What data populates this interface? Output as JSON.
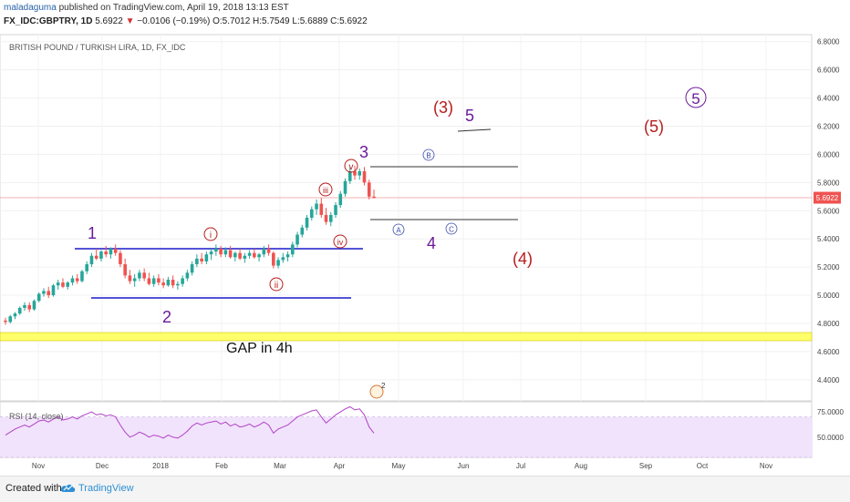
{
  "header": {
    "author": "maladaguma",
    "published": " published on TradingView.com, April 19, 2018 13:13 EST",
    "symbol": "FX_IDC:GBPTRY, 1D",
    "last": "5.6922",
    "change": "−0.0106 (−0.19%)",
    "ohlc": "O:5.7012 H:5.7549 L:5.6889 C:5.6922"
  },
  "footer": {
    "created_with": "Created with",
    "brand": "TradingView",
    "logo_icon": "tradingview-logo-icon"
  },
  "colors": {
    "up": "#26a69a",
    "down": "#ef5350",
    "support_line": "#1a1acb",
    "wave_purple": "#6a1b9a",
    "wave_red": "#b71c1c",
    "gap_band": "#ffff6b",
    "rsi_fill": "#f1e3fb",
    "rsi_line": "#b042c7",
    "price_line": "#ef9a9a"
  },
  "chart_data": [
    {
      "type": "candlestick",
      "title": "BRITISH POUND / TURKISH LIRA, 1D, FX_IDC",
      "x_ticks": [
        "Nov",
        "Dec",
        "2018",
        "Feb",
        "Mar",
        "Apr",
        "May",
        "Jun",
        "Jul",
        "Aug",
        "Sep",
        "Oct",
        "Nov"
      ],
      "y_ticks": [
        "6.8000",
        "6.6000",
        "6.4000",
        "6.2000",
        "6.0000",
        "5.8000",
        "5.6000",
        "5.4000",
        "5.2000",
        "5.0000",
        "4.8000",
        "4.6000",
        "4.4000"
      ],
      "ylim": [
        4.25,
        6.85
      ],
      "last_price": "5.6922",
      "candles": [
        [
          4.82,
          4.84,
          4.79,
          4.81
        ],
        [
          4.81,
          4.86,
          4.8,
          4.85
        ],
        [
          4.85,
          4.88,
          4.83,
          4.87
        ],
        [
          4.87,
          4.92,
          4.86,
          4.91
        ],
        [
          4.91,
          4.95,
          4.89,
          4.93
        ],
        [
          4.93,
          4.95,
          4.88,
          4.9
        ],
        [
          4.9,
          4.97,
          4.89,
          4.96
        ],
        [
          4.96,
          5.02,
          4.95,
          5.01
        ],
        [
          5.01,
          5.05,
          4.99,
          5.03
        ],
        [
          5.03,
          5.06,
          4.98,
          5.0
        ],
        [
          5.0,
          5.08,
          4.99,
          5.07
        ],
        [
          5.07,
          5.11,
          5.04,
          5.09
        ],
        [
          5.09,
          5.12,
          5.05,
          5.06
        ],
        [
          5.06,
          5.1,
          5.04,
          5.09
        ],
        [
          5.09,
          5.14,
          5.07,
          5.12
        ],
        [
          5.12,
          5.15,
          5.08,
          5.1
        ],
        [
          5.1,
          5.18,
          5.09,
          5.17
        ],
        [
          5.17,
          5.24,
          5.15,
          5.22
        ],
        [
          5.22,
          5.3,
          5.2,
          5.28
        ],
        [
          5.28,
          5.33,
          5.25,
          5.26
        ],
        [
          5.26,
          5.32,
          5.24,
          5.31
        ],
        [
          5.31,
          5.35,
          5.27,
          5.29
        ],
        [
          5.29,
          5.34,
          5.26,
          5.33
        ],
        [
          5.33,
          5.36,
          5.28,
          5.3
        ],
        [
          5.3,
          5.32,
          5.2,
          5.22
        ],
        [
          5.22,
          5.26,
          5.12,
          5.14
        ],
        [
          5.14,
          5.18,
          5.08,
          5.1
        ],
        [
          5.1,
          5.15,
          5.06,
          5.12
        ],
        [
          5.12,
          5.18,
          5.1,
          5.16
        ],
        [
          5.16,
          5.19,
          5.1,
          5.12
        ],
        [
          5.12,
          5.16,
          5.07,
          5.08
        ],
        [
          5.08,
          5.14,
          5.06,
          5.12
        ],
        [
          5.12,
          5.15,
          5.07,
          5.09
        ],
        [
          5.09,
          5.12,
          5.05,
          5.07
        ],
        [
          5.07,
          5.13,
          5.06,
          5.11
        ],
        [
          5.11,
          5.14,
          5.05,
          5.07
        ],
        [
          5.07,
          5.1,
          5.04,
          5.08
        ],
        [
          5.08,
          5.14,
          5.06,
          5.12
        ],
        [
          5.12,
          5.18,
          5.1,
          5.16
        ],
        [
          5.16,
          5.24,
          5.14,
          5.22
        ],
        [
          5.22,
          5.29,
          5.2,
          5.26
        ],
        [
          5.26,
          5.3,
          5.22,
          5.24
        ],
        [
          5.24,
          5.31,
          5.22,
          5.29
        ],
        [
          5.29,
          5.33,
          5.25,
          5.31
        ],
        [
          5.31,
          5.36,
          5.28,
          5.33
        ],
        [
          5.33,
          5.35,
          5.27,
          5.29
        ],
        [
          5.29,
          5.34,
          5.27,
          5.32
        ],
        [
          5.32,
          5.35,
          5.26,
          5.27
        ],
        [
          5.27,
          5.31,
          5.24,
          5.3
        ],
        [
          5.3,
          5.33,
          5.25,
          5.26
        ],
        [
          5.26,
          5.3,
          5.23,
          5.28
        ],
        [
          5.28,
          5.32,
          5.26,
          5.3
        ],
        [
          5.3,
          5.33,
          5.26,
          5.27
        ],
        [
          5.27,
          5.3,
          5.24,
          5.29
        ],
        [
          5.29,
          5.35,
          5.27,
          5.33
        ],
        [
          5.33,
          5.36,
          5.28,
          5.3
        ],
        [
          5.3,
          5.31,
          5.19,
          5.21
        ],
        [
          5.21,
          5.27,
          5.19,
          5.25
        ],
        [
          5.25,
          5.3,
          5.23,
          5.27
        ],
        [
          5.27,
          5.31,
          5.24,
          5.29
        ],
        [
          5.29,
          5.38,
          5.27,
          5.36
        ],
        [
          5.36,
          5.45,
          5.34,
          5.43
        ],
        [
          5.43,
          5.5,
          5.41,
          5.48
        ],
        [
          5.48,
          5.57,
          5.46,
          5.55
        ],
        [
          5.55,
          5.63,
          5.53,
          5.61
        ],
        [
          5.61,
          5.68,
          5.57,
          5.65
        ],
        [
          5.65,
          5.69,
          5.55,
          5.57
        ],
        [
          5.57,
          5.62,
          5.5,
          5.52
        ],
        [
          5.52,
          5.59,
          5.49,
          5.57
        ],
        [
          5.57,
          5.66,
          5.55,
          5.64
        ],
        [
          5.64,
          5.74,
          5.62,
          5.72
        ],
        [
          5.72,
          5.83,
          5.7,
          5.81
        ],
        [
          5.81,
          5.91,
          5.79,
          5.88
        ],
        [
          5.88,
          5.92,
          5.82,
          5.85
        ],
        [
          5.85,
          5.9,
          5.82,
          5.88
        ],
        [
          5.88,
          5.91,
          5.78,
          5.8
        ],
        [
          5.8,
          5.82,
          5.68,
          5.7
        ],
        [
          5.7,
          5.75,
          5.69,
          5.69
        ]
      ]
    },
    {
      "type": "line",
      "title": "RSI (14, close)",
      "y_ticks": [
        "75.0000",
        "50.0000"
      ],
      "ylim": [
        30,
        85
      ],
      "values": [
        52,
        55,
        58,
        60,
        62,
        60,
        63,
        66,
        67,
        65,
        68,
        70,
        67,
        68,
        70,
        68,
        71,
        73,
        75,
        72,
        73,
        71,
        72,
        70,
        62,
        55,
        50,
        52,
        55,
        53,
        50,
        52,
        51,
        49,
        52,
        50,
        49,
        52,
        56,
        61,
        64,
        62,
        64,
        65,
        66,
        63,
        65,
        61,
        63,
        60,
        61,
        63,
        60,
        62,
        65,
        62,
        54,
        58,
        60,
        62,
        66,
        70,
        72,
        74,
        76,
        77,
        70,
        64,
        68,
        72,
        75,
        78,
        80,
        77,
        78,
        72,
        60,
        54
      ]
    }
  ],
  "annotations": {
    "waves_major": [
      "1",
      "2",
      "3",
      "4",
      "5"
    ],
    "waves_red": [
      "(3)",
      "(4)",
      "(5)"
    ],
    "wave_circled_purple": "5",
    "waves_minor": [
      "i",
      "ii",
      "iii",
      "iv",
      "v"
    ],
    "abc": [
      "A",
      "B",
      "C"
    ],
    "gap_label": "GAP in 4h",
    "event_badge": "2"
  }
}
